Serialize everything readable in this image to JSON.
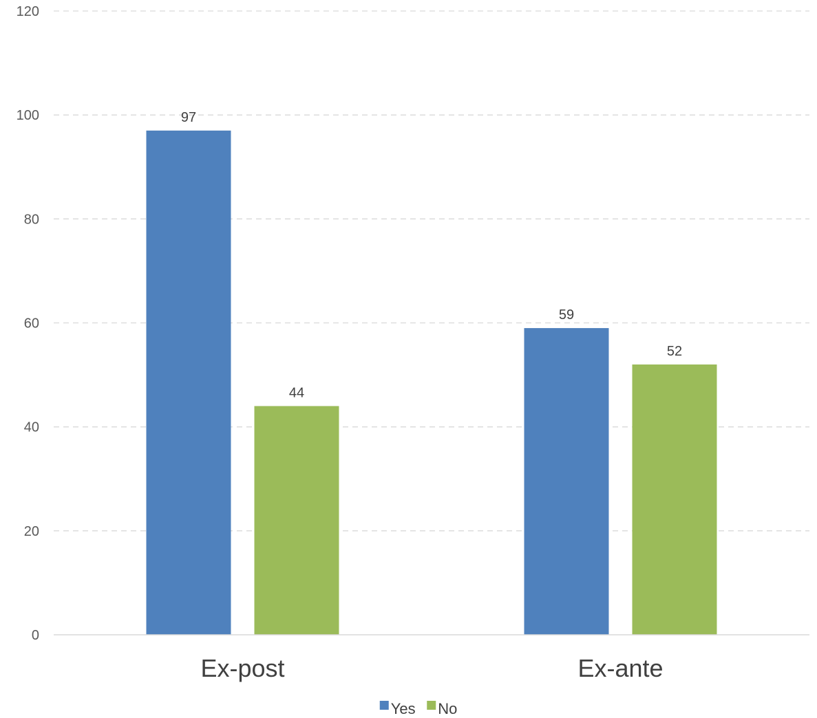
{
  "chart_data": {
    "type": "bar",
    "categories": [
      "Ex-post",
      "Ex-ante"
    ],
    "series": [
      {
        "name": "Yes",
        "values": [
          97,
          59
        ],
        "color": "#4F81BD"
      },
      {
        "name": "No",
        "values": [
          44,
          52
        ],
        "color": "#9BBB59"
      }
    ],
    "title": "",
    "xlabel": "",
    "ylabel": "",
    "ylim": [
      0,
      120
    ],
    "yticks": [
      0,
      20,
      40,
      60,
      80,
      100,
      120
    ],
    "grid": true,
    "legend_position": "bottom",
    "data_labels": true
  }
}
